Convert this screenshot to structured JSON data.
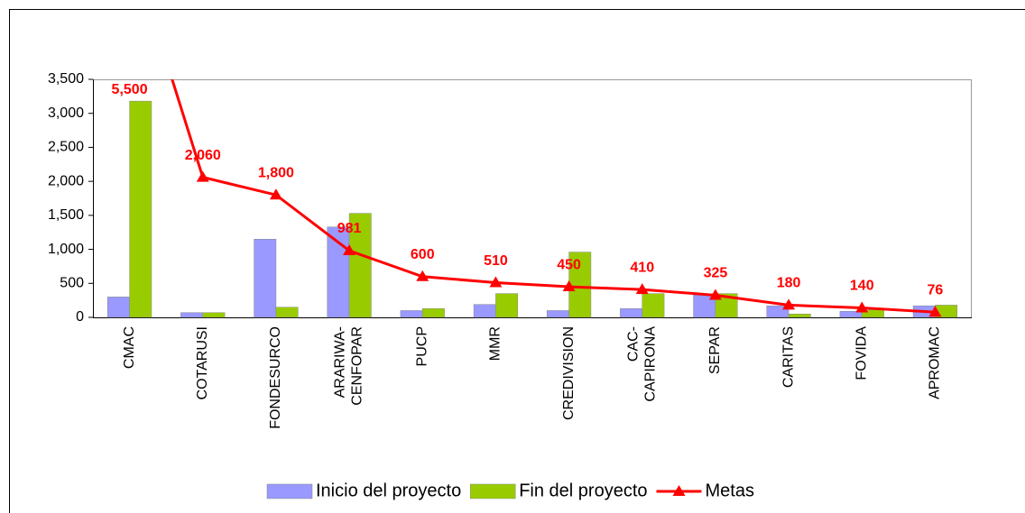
{
  "chart_data": {
    "type": "bar_line",
    "categories": [
      "CMAC",
      "COTARUSI",
      "FONDESURCO",
      "ARARIWA-\nCENFOPAR",
      "PUCP",
      "MMR",
      "CREDIVISION",
      "CAC-\nCAPIRONA",
      "SEPAR",
      "CARITAS",
      "FOVIDA",
      "APROMAC"
    ],
    "series": [
      {
        "name": "Inicio del proyecto",
        "type": "bar",
        "color": "#9999ff",
        "values": [
          300,
          70,
          1150,
          1330,
          100,
          190,
          100,
          130,
          330,
          170,
          90,
          170
        ]
      },
      {
        "name": "Fin del proyecto",
        "type": "bar",
        "color": "#99cc00",
        "values": [
          3180,
          70,
          150,
          1530,
          130,
          350,
          960,
          350,
          350,
          50,
          110,
          180
        ]
      },
      {
        "name": "Metas",
        "type": "line",
        "color": "#ff0000",
        "values": [
          5500,
          2060,
          1800,
          981,
          600,
          510,
          450,
          410,
          325,
          180,
          140,
          76
        ],
        "value_labels": [
          "5,500",
          "2,060",
          "1,800",
          "981",
          "600",
          "510",
          "450",
          "410",
          "325",
          "180",
          "140",
          "76"
        ]
      }
    ],
    "ylim": [
      0,
      3500
    ],
    "yticks": [
      0,
      500,
      {
        "value": 1000,
        "label": "1,000"
      },
      {
        "value": 1500,
        "label": "1,500"
      },
      {
        "value": 2000,
        "label": "2,000"
      },
      {
        "value": 2500,
        "label": "2,500"
      },
      {
        "value": 3000,
        "label": "3,000"
      },
      {
        "value": 3500,
        "label": "3,500"
      }
    ],
    "legend": "bottom"
  }
}
